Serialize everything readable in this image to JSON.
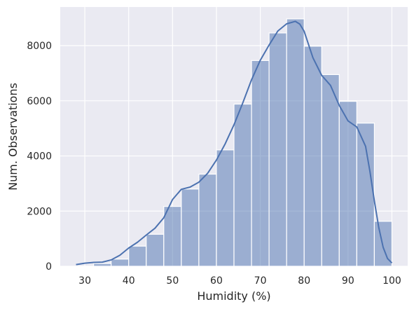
{
  "chart_data": {
    "type": "bar",
    "title": "",
    "xlabel": "Humidity (%)",
    "ylabel": "Num. Observations",
    "xlim": [
      24.4,
      103.6
    ],
    "ylim": [
      0,
      9400
    ],
    "xticks": [
      30,
      40,
      50,
      60,
      70,
      80,
      90,
      100
    ],
    "yticks": [
      0,
      2000,
      4000,
      6000,
      8000
    ],
    "grid": true,
    "background": "#eaeaf2",
    "bar_color": "#4c72b0",
    "bar_opacity": 0.5,
    "line_color": "#4c72b0",
    "bins": [
      {
        "x0": 28,
        "x1": 32,
        "count": 0
      },
      {
        "x0": 32,
        "x1": 36,
        "count": 100
      },
      {
        "x0": 36,
        "x1": 40,
        "count": 260
      },
      {
        "x0": 40,
        "x1": 44,
        "count": 730
      },
      {
        "x0": 44,
        "x1": 48,
        "count": 1160
      },
      {
        "x0": 48,
        "x1": 52,
        "count": 2170
      },
      {
        "x0": 52,
        "x1": 56,
        "count": 2800
      },
      {
        "x0": 56,
        "x1": 60,
        "count": 3340
      },
      {
        "x0": 60,
        "x1": 64,
        "count": 4220
      },
      {
        "x0": 64,
        "x1": 68,
        "count": 5880
      },
      {
        "x0": 68,
        "x1": 72,
        "count": 7460
      },
      {
        "x0": 72,
        "x1": 76,
        "count": 8460
      },
      {
        "x0": 76,
        "x1": 80,
        "count": 8970
      },
      {
        "x0": 80,
        "x1": 84,
        "count": 7980
      },
      {
        "x0": 84,
        "x1": 88,
        "count": 6950
      },
      {
        "x0": 88,
        "x1": 92,
        "count": 5980
      },
      {
        "x0": 92,
        "x1": 96,
        "count": 5190
      },
      {
        "x0": 96,
        "x1": 100,
        "count": 1630
      }
    ],
    "kde": {
      "x": [
        28,
        30,
        32,
        34,
        36,
        38,
        40,
        42,
        44,
        46,
        48,
        50,
        52,
        54,
        56,
        58,
        60,
        62,
        64,
        66,
        68,
        70,
        72,
        74,
        76,
        78,
        79,
        80,
        82,
        84,
        86,
        88,
        90,
        92,
        94,
        95,
        96,
        97,
        98,
        99,
        100
      ],
      "y": [
        60,
        110,
        140,
        150,
        230,
        400,
        660,
        870,
        1130,
        1380,
        1760,
        2420,
        2790,
        2870,
        3050,
        3370,
        3850,
        4440,
        5130,
        5920,
        6760,
        7470,
        8020,
        8530,
        8790,
        8880,
        8780,
        8520,
        7560,
        6920,
        6560,
        5830,
        5270,
        5050,
        4350,
        3430,
        2370,
        1410,
        690,
        280,
        120
      ]
    }
  }
}
